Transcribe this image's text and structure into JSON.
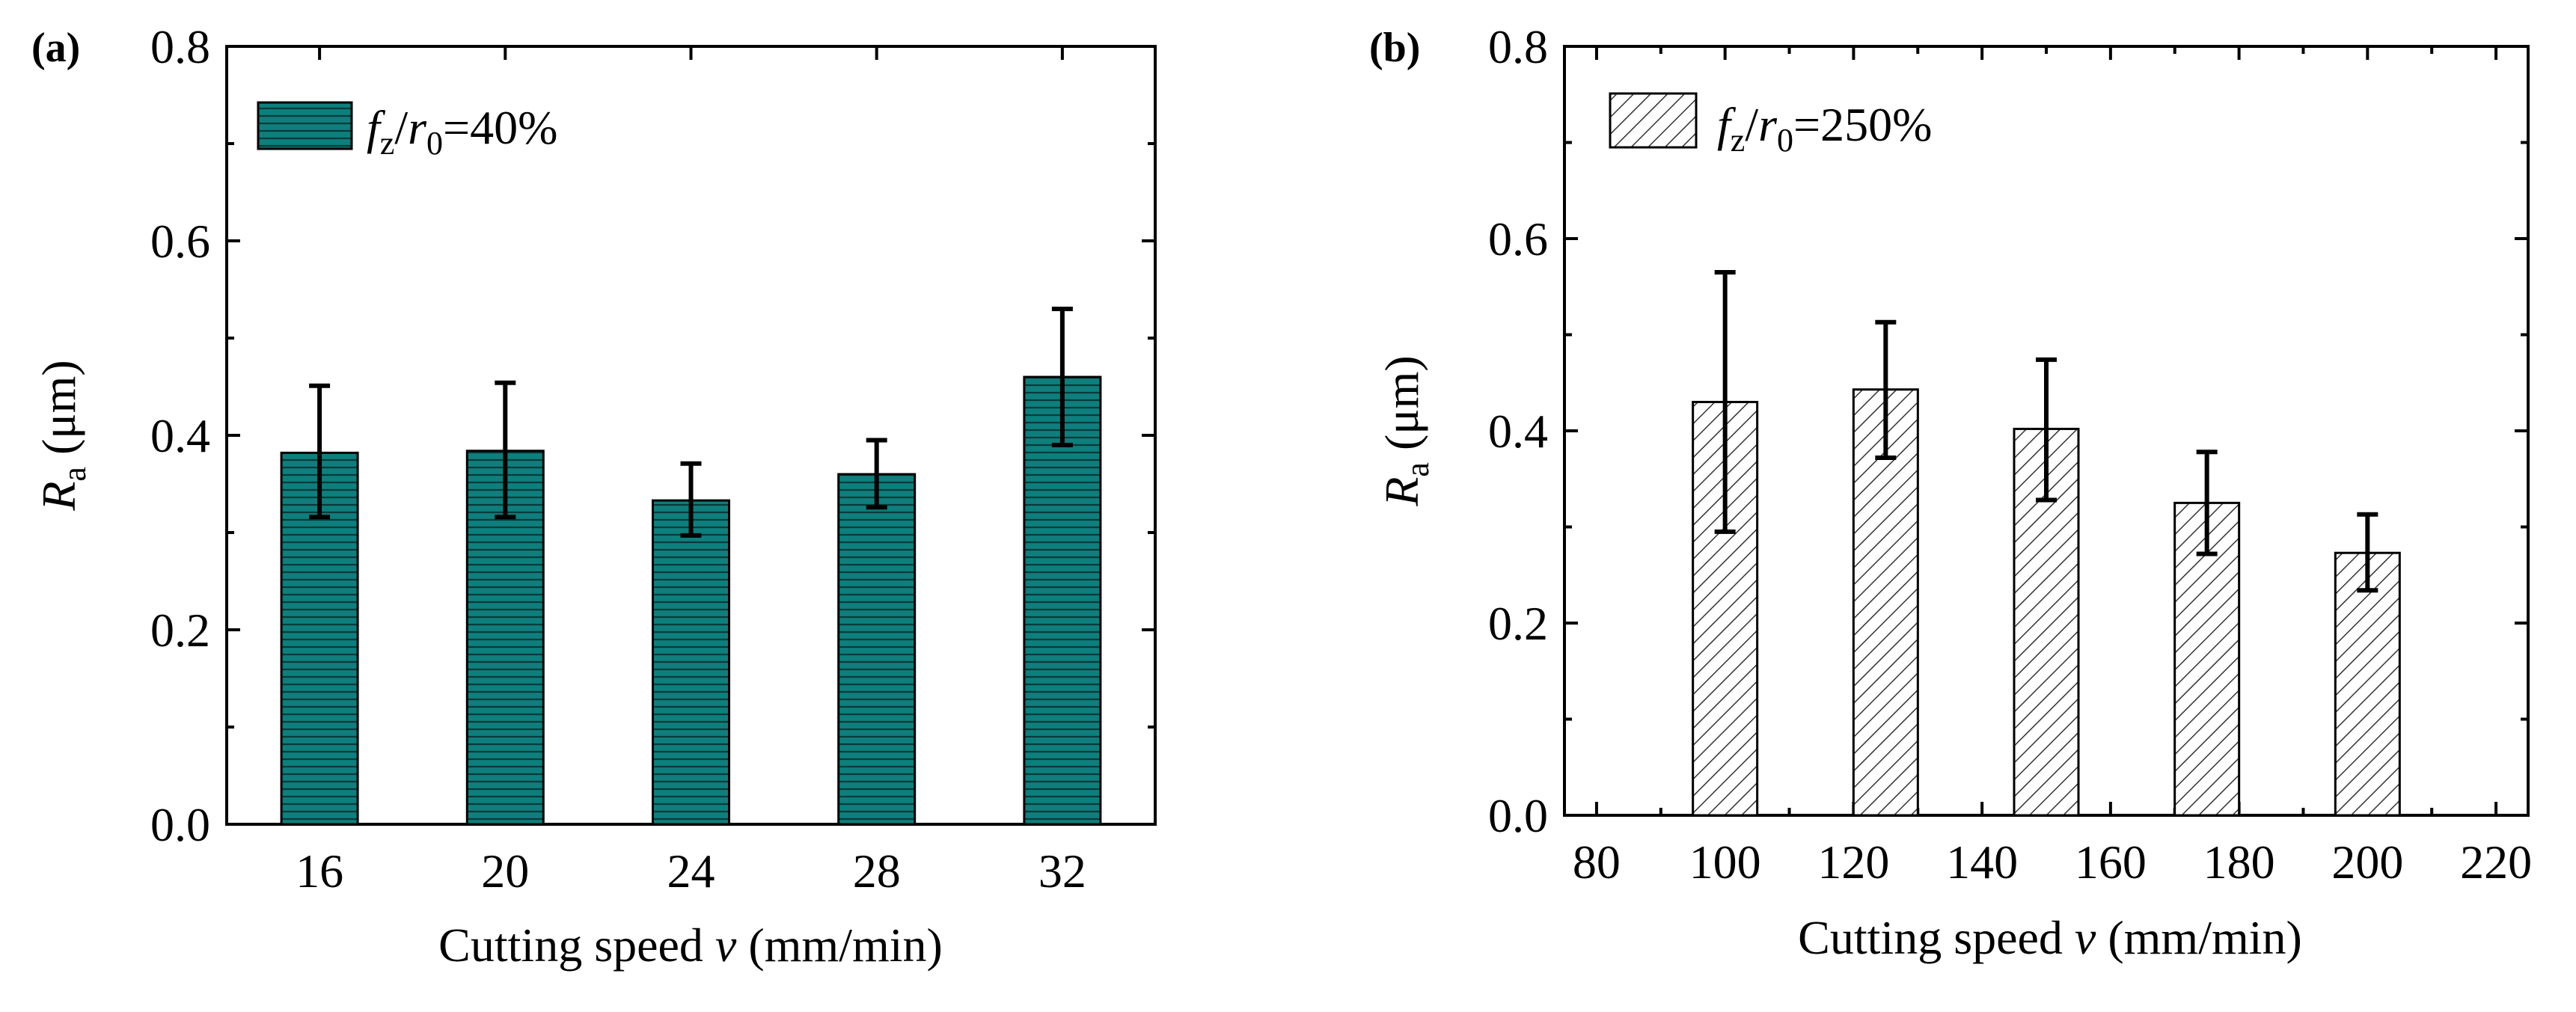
{
  "chart_data": [
    {
      "panel": "(a)",
      "type": "bar",
      "categories": [
        "16",
        "20",
        "24",
        "28",
        "32"
      ],
      "values": [
        0.382,
        0.384,
        0.333,
        0.36,
        0.46
      ],
      "err_low": [
        0.316,
        0.316,
        0.297,
        0.326,
        0.39
      ],
      "err_high": [
        0.451,
        0.454,
        0.371,
        0.395,
        0.53
      ],
      "ylim": [
        0.0,
        0.8
      ],
      "yticks": [
        "0.0",
        "0.2",
        "0.4",
        "0.6",
        "0.8"
      ],
      "xlabel": "Cutting speed v (mm/min)",
      "ylabel": "Ra (μm)",
      "legend": "fz/r0=40%",
      "legend_position": "top-left",
      "bar_color": "#0e7f7c",
      "pattern": "horizontal-lines"
    },
    {
      "panel": "(b)",
      "type": "bar",
      "x": [
        100,
        125,
        150,
        175,
        200
      ],
      "values": [
        0.43,
        0.443,
        0.402,
        0.325,
        0.273
      ],
      "err_low": [
        0.295,
        0.372,
        0.328,
        0.272,
        0.234
      ],
      "err_high": [
        0.565,
        0.513,
        0.474,
        0.378,
        0.313
      ],
      "xlim": [
        75,
        225
      ],
      "xticks": [
        "80",
        "100",
        "120",
        "140",
        "160",
        "180",
        "200",
        "220"
      ],
      "ylim": [
        0.0,
        0.8
      ],
      "yticks": [
        "0.0",
        "0.2",
        "0.4",
        "0.6",
        "0.8"
      ],
      "xlabel": "Cutting speed v (mm/min)",
      "ylabel": "Ra (μm)",
      "legend": "fz/r0=250%",
      "legend_position": "top-left",
      "bar_color": "#ffffff",
      "pattern": "diagonal-hatch"
    }
  ],
  "labels": {
    "a": "(a)",
    "b": "(b)",
    "xlabel_prefix": "Cutting speed ",
    "xlabel_var": "v",
    "xlabel_suffix": " (mm/min)",
    "ylabel_var": "R",
    "ylabel_sub": "a",
    "ylabel_unit": " (μm)",
    "legend_a_f": "f",
    "legend_a_z": "z",
    "legend_a_slash": "/",
    "legend_a_r": "r",
    "legend_a_0": "0",
    "legend_a_val": "=40%",
    "legend_b_f": "f",
    "legend_b_z": "z",
    "legend_b_slash": "/",
    "legend_b_r": "r",
    "legend_b_0": "0",
    "legend_b_val": "=250%"
  }
}
